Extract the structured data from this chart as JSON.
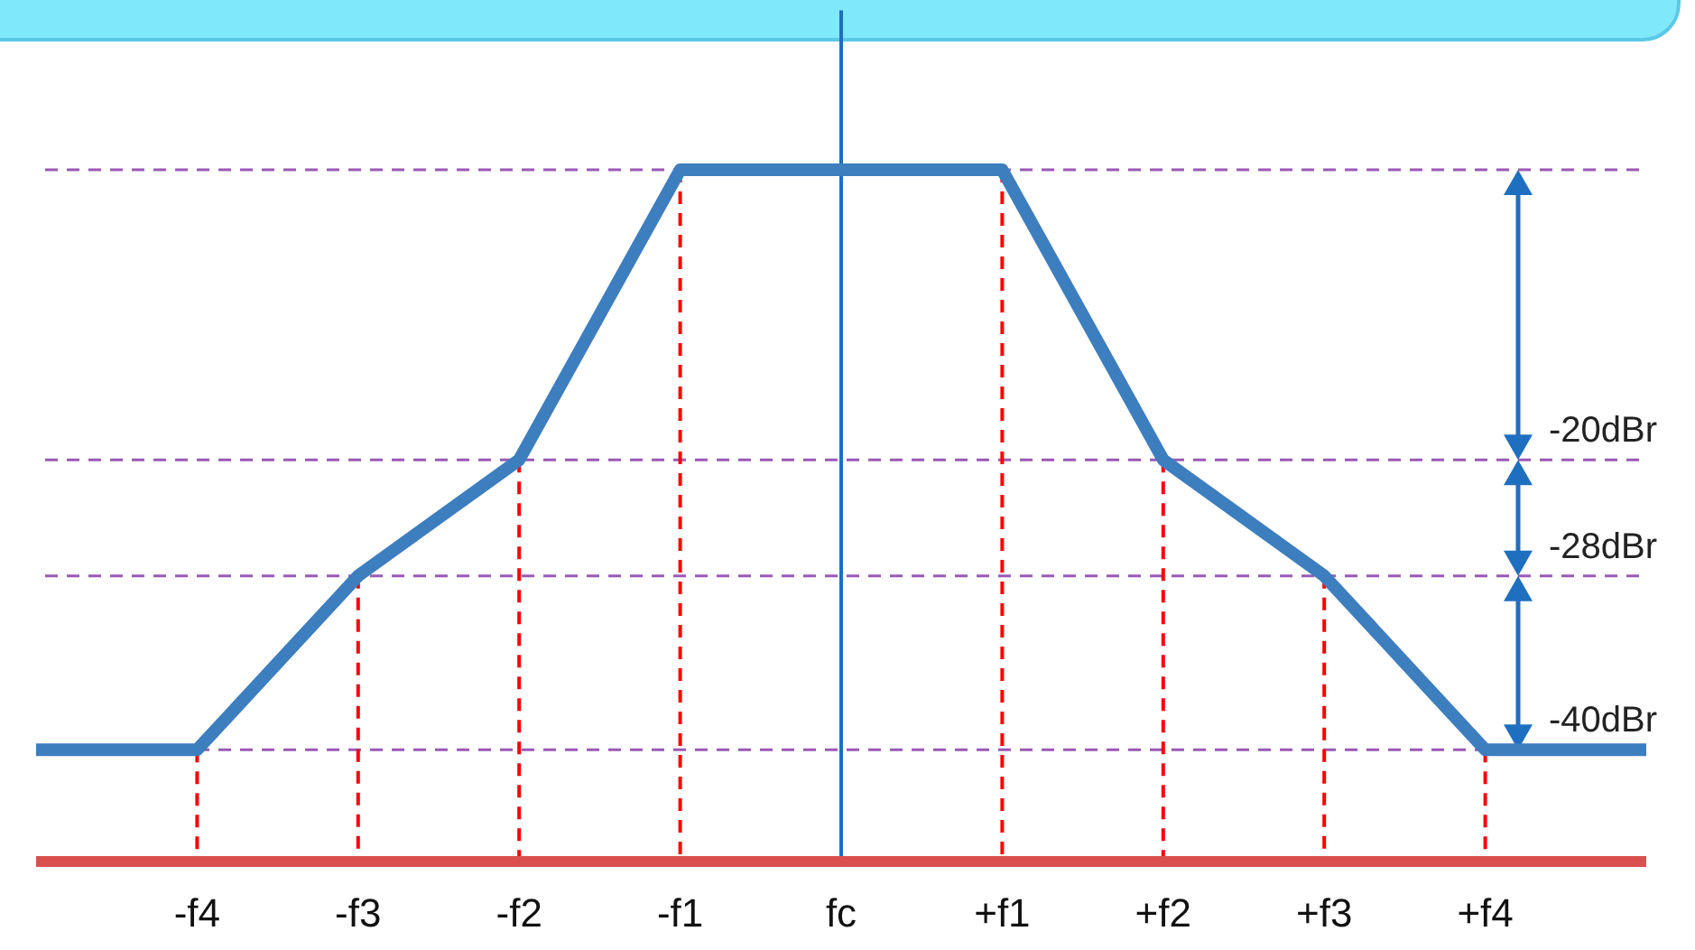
{
  "chart_data": {
    "type": "line",
    "categories": [
      null,
      "-f4",
      "-f3",
      "-f2",
      "-f1",
      "fc",
      "+f1",
      "+f2",
      "+f3",
      "+f4",
      null
    ],
    "series": [
      {
        "color": "#3d7ebf",
        "values": [
          -40,
          -40,
          -28,
          -20,
          0,
          0,
          0,
          -20,
          -28,
          -40,
          -40
        ]
      }
    ],
    "ylim": [
      -47.7,
      11
    ],
    "tick_labels": "x",
    "line_style": "solid",
    "ref_lines": [
      {
        "axis": "y",
        "value": 0,
        "label": null,
        "color": "#9b59b6",
        "line_style": "dashed"
      },
      {
        "axis": "y",
        "value": -20,
        "label": "-20dBr",
        "color": "#9b59b6",
        "line_style": "dashed"
      },
      {
        "axis": "y",
        "value": -28,
        "label": "-28dBr",
        "color": "#9b59b6",
        "line_style": "dashed"
      },
      {
        "axis": "y",
        "value": -40,
        "label": "-40dBr",
        "color": "#9b59b6",
        "line_style": "dashed"
      },
      {
        "axis": "x",
        "value": "-f4",
        "label": null,
        "color": "#ff0000",
        "line_style": "dashed"
      },
      {
        "axis": "x",
        "value": "-f3",
        "label": null,
        "color": "#ff0000",
        "line_style": "dashed"
      },
      {
        "axis": "x",
        "value": "-f2",
        "label": null,
        "color": "#ff0000",
        "line_style": "dashed"
      },
      {
        "axis": "x",
        "value": "-f1",
        "label": null,
        "color": "#ff0000",
        "line_style": "dashed"
      },
      {
        "axis": "x",
        "value": "+f1",
        "label": null,
        "color": "#ff0000",
        "line_style": "dashed"
      },
      {
        "axis": "x",
        "value": "+f2",
        "label": null,
        "color": "#ff0000",
        "line_style": "dashed"
      },
      {
        "axis": "x",
        "value": "+f3",
        "label": null,
        "color": "#ff0000",
        "line_style": "dashed"
      },
      {
        "axis": "x",
        "value": "+f4",
        "label": null,
        "color": "#ff0000",
        "line_style": "dashed"
      },
      {
        "axis": "x",
        "value": "fc",
        "label": null,
        "color": "#1f6fc0",
        "line_style": "solid"
      }
    ]
  }
}
